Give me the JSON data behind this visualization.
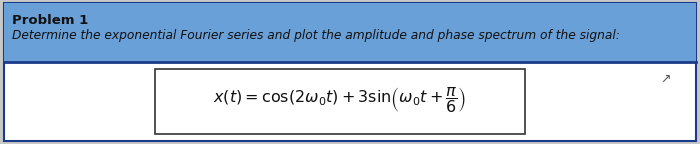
{
  "bg_color": "#c8c8c8",
  "header_bg": "#6aa0d8",
  "white_bg": "#ffffff",
  "problem_title": "Problem 1",
  "subtitle": "Determine the exponential Fourier series and plot the amplitude and phase spectrum of the signal:",
  "title_fontsize": 9.5,
  "subtitle_fontsize": 8.8,
  "formula_fontsize": 11.5,
  "text_color": "#111111",
  "border_color": "#1a3a8a",
  "divider_color": "#1a3a8a",
  "formula_box_color": "#333333",
  "cursor_color": "#555555"
}
